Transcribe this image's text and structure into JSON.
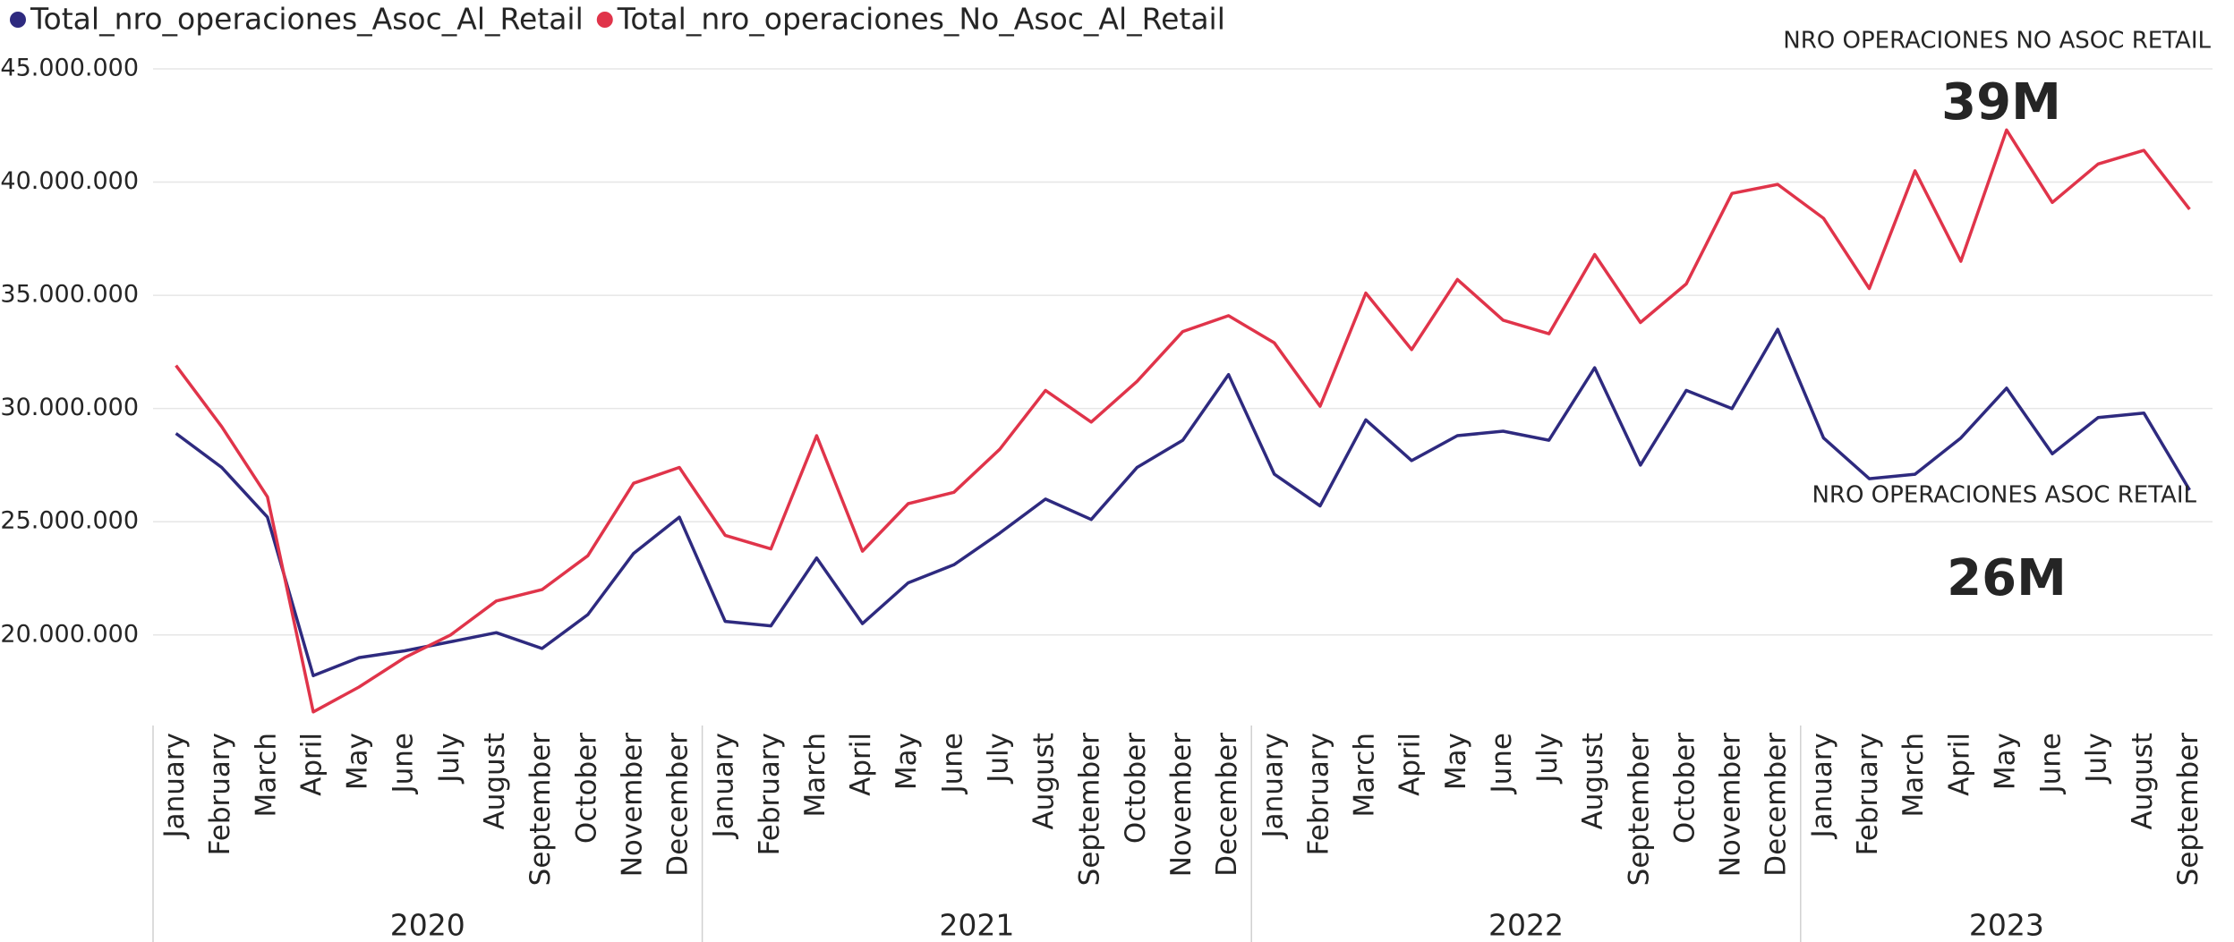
{
  "chart_data": {
    "type": "line",
    "categories": [
      "January",
      "February",
      "March",
      "April",
      "May",
      "June",
      "July",
      "August",
      "September",
      "October",
      "November",
      "December",
      "January",
      "February",
      "March",
      "April",
      "May",
      "June",
      "July",
      "August",
      "September",
      "October",
      "November",
      "December",
      "January",
      "February",
      "March",
      "April",
      "May",
      "June",
      "July",
      "August",
      "September",
      "October",
      "November",
      "December",
      "January",
      "February",
      "March",
      "April",
      "May",
      "June",
      "July",
      "August",
      "September"
    ],
    "category_groups": [
      {
        "label": "2020",
        "start": 0,
        "end": 11
      },
      {
        "label": "2021",
        "start": 12,
        "end": 23
      },
      {
        "label": "2022",
        "start": 24,
        "end": 35
      },
      {
        "label": "2023",
        "start": 36,
        "end": 44
      }
    ],
    "series": [
      {
        "name": "Total_nro_operaciones_Asoc_Al_Retail",
        "color": "#2e2a7f",
        "values": [
          28900000,
          27400000,
          25200000,
          18200000,
          19000000,
          19300000,
          19700000,
          20100000,
          19400000,
          20900000,
          23600000,
          25200000,
          20600000,
          20400000,
          23400000,
          20500000,
          22300000,
          23100000,
          24500000,
          26000000,
          25100000,
          27400000,
          28600000,
          31500000,
          27100000,
          25700000,
          29500000,
          27700000,
          28800000,
          29000000,
          28600000,
          31800000,
          27500000,
          30800000,
          30000000,
          33500000,
          28700000,
          26900000,
          27100000,
          28700000,
          30900000,
          28000000,
          29600000,
          29800000,
          26400000
        ]
      },
      {
        "name": "Total_nro_operaciones_No_Asoc_Al_Retail",
        "color": "#e0344a",
        "values": [
          31900000,
          29200000,
          26100000,
          16600000,
          17700000,
          19000000,
          20000000,
          21500000,
          22000000,
          23500000,
          26700000,
          27400000,
          24400000,
          23800000,
          28800000,
          23700000,
          25800000,
          26300000,
          28200000,
          30800000,
          29400000,
          31200000,
          33400000,
          34100000,
          32900000,
          30100000,
          35100000,
          32600000,
          35700000,
          33900000,
          33300000,
          36800000,
          33800000,
          35500000,
          39500000,
          39900000,
          38400000,
          35300000,
          40500000,
          36500000,
          42300000,
          39100000,
          40800000,
          41400000,
          38800000
        ]
      }
    ],
    "ylim": [
      16000000,
      45000000
    ],
    "yticks": [
      {
        "value": 20000000,
        "label": "20.000.000"
      },
      {
        "value": 25000000,
        "label": "25.000.000"
      },
      {
        "value": 30000000,
        "label": "30.000.000"
      },
      {
        "value": 35000000,
        "label": "35.000.000"
      },
      {
        "value": 40000000,
        "label": "40.000.000"
      },
      {
        "value": 45000000,
        "label": "45.000.000"
      }
    ],
    "grid": true,
    "legend": "top-left",
    "annotations": [
      {
        "text": "NRO OPERACIONES NO ASOC RETAIL",
        "value_label": "39M"
      },
      {
        "text": "NRO OPERACIONES ASOC RETAIL",
        "value_label": "26M"
      }
    ]
  }
}
